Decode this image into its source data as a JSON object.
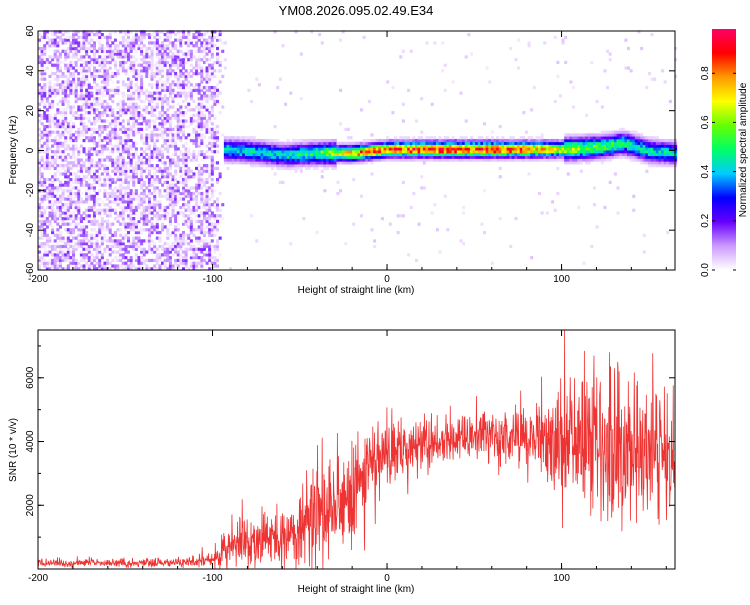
{
  "title": "YM08.2026.095.02.49.E34",
  "chart_data": [
    {
      "type": "heatmap",
      "xlabel": "Height of straight line (km)",
      "ylabel": "Frequency (Hz)",
      "xlim": [
        -200,
        165
      ],
      "ylim": [
        -60,
        60
      ],
      "xticks": [
        -200,
        -100,
        0,
        100
      ],
      "yticks": [
        -60,
        -40,
        -20,
        0,
        20,
        40,
        60
      ],
      "colorbar": {
        "label": "Normalized spectral amplitude",
        "range": [
          0.0,
          0.98
        ],
        "ticks": [
          0.0,
          0.2,
          0.4,
          0.6,
          0.8
        ],
        "colors": [
          "#ffffff",
          "#cc99ff",
          "#6600ff",
          "#0000ff",
          "#00ccff",
          "#00ff66",
          "#66ff00",
          "#ffff00",
          "#ff9900",
          "#ff0000",
          "#ff0066"
        ]
      },
      "noise_region_x": [
        -200,
        -100
      ],
      "band_center_hz": [
        {
          "x": -100,
          "f": 0
        },
        {
          "x": -80,
          "f": -1
        },
        {
          "x": -60,
          "f": -3
        },
        {
          "x": -40,
          "f": -2
        },
        {
          "x": -20,
          "f": -2
        },
        {
          "x": 0,
          "f": 0
        },
        {
          "x": 20,
          "f": 0
        },
        {
          "x": 40,
          "f": 0
        },
        {
          "x": 60,
          "f": 0
        },
        {
          "x": 80,
          "f": 0
        },
        {
          "x": 100,
          "f": 0
        },
        {
          "x": 120,
          "f": 1
        },
        {
          "x": 135,
          "f": 3
        },
        {
          "x": 150,
          "f": -1
        },
        {
          "x": 165,
          "f": -2
        }
      ],
      "peak_amplitude": [
        {
          "x": -100,
          "a": 0.45
        },
        {
          "x": -80,
          "a": 0.45
        },
        {
          "x": -60,
          "a": 0.45
        },
        {
          "x": -40,
          "a": 0.55
        },
        {
          "x": -20,
          "a": 0.85
        },
        {
          "x": 0,
          "a": 0.9
        },
        {
          "x": 20,
          "a": 0.95
        },
        {
          "x": 40,
          "a": 0.95
        },
        {
          "x": 60,
          "a": 0.95
        },
        {
          "x": 80,
          "a": 0.9
        },
        {
          "x": 100,
          "a": 0.7
        },
        {
          "x": 120,
          "a": 0.6
        },
        {
          "x": 140,
          "a": 0.5
        },
        {
          "x": 165,
          "a": 0.45
        }
      ]
    },
    {
      "type": "line",
      "xlabel": "Height of straight line (km)",
      "ylabel": "SNR (10 * v/v)",
      "xlim": [
        -200,
        165
      ],
      "ylim": [
        0,
        7500
      ],
      "xticks": [
        -200,
        -100,
        0,
        100
      ],
      "yticks": [
        2000,
        4000,
        6000
      ],
      "color": "#ee3333",
      "envelope": [
        {
          "x": -200,
          "mean": 180,
          "spread": 120
        },
        {
          "x": -120,
          "mean": 200,
          "spread": 150
        },
        {
          "x": -100,
          "mean": 300,
          "spread": 250
        },
        {
          "x": -90,
          "mean": 700,
          "spread": 900
        },
        {
          "x": -70,
          "mean": 900,
          "spread": 1100
        },
        {
          "x": -50,
          "mean": 1100,
          "spread": 1200
        },
        {
          "x": -40,
          "mean": 1800,
          "spread": 1800
        },
        {
          "x": -30,
          "mean": 1700,
          "spread": 1800
        },
        {
          "x": -20,
          "mean": 2600,
          "spread": 2200
        },
        {
          "x": -10,
          "mean": 3000,
          "spread": 1600
        },
        {
          "x": 0,
          "mean": 3400,
          "spread": 1300
        },
        {
          "x": 20,
          "mean": 3900,
          "spread": 900
        },
        {
          "x": 40,
          "mean": 4100,
          "spread": 800
        },
        {
          "x": 60,
          "mean": 4100,
          "spread": 900
        },
        {
          "x": 80,
          "mean": 4000,
          "spread": 1100
        },
        {
          "x": 100,
          "mean": 4000,
          "spread": 2200
        },
        {
          "x": 120,
          "mean": 3900,
          "spread": 2700
        },
        {
          "x": 140,
          "mean": 3600,
          "spread": 2700
        },
        {
          "x": 165,
          "mean": 3500,
          "spread": 2000
        }
      ]
    }
  ]
}
